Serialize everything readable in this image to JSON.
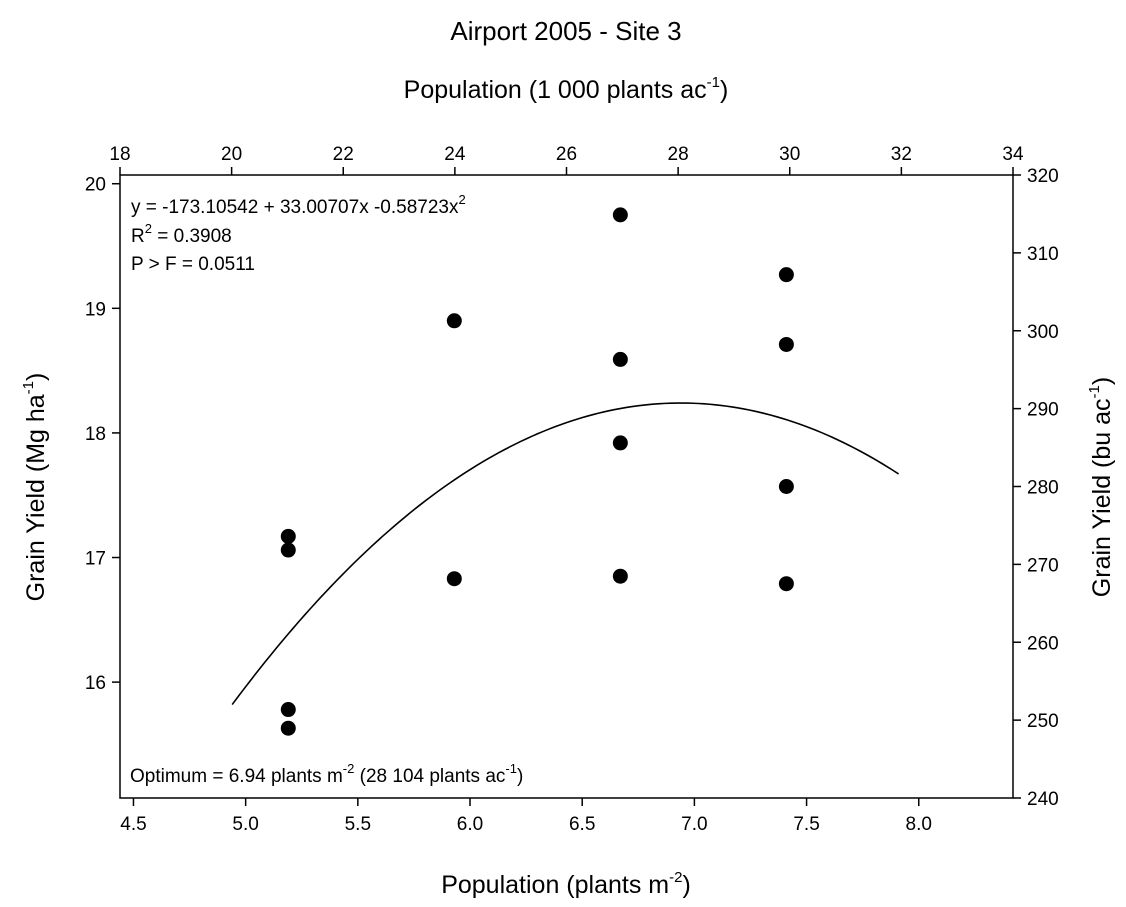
{
  "chart_data": {
    "type": "scatter",
    "title": "Airport 2005 - Site 3",
    "top_axis_label": {
      "main": "Population (1 000 plants ac",
      "sup": "-1",
      "end": ")"
    },
    "bottom_axis_label": {
      "main": "Population (plants m",
      "sup": "-2",
      "end": ")"
    },
    "left_axis_label": {
      "main": "Grain Yield (Mg ha",
      "sup": "-1",
      "end": ")"
    },
    "right_axis_label": {
      "main": "Grain Yield (bu ac",
      "sup": "-1",
      "end": ")"
    },
    "x_bottom": {
      "min": 4.44,
      "max": 8.42,
      "ticks": [
        "4.5",
        "5.0",
        "5.5",
        "6.0",
        "6.5",
        "7.0",
        "7.5",
        "8.0"
      ]
    },
    "x_top": {
      "min": 18,
      "max": 34,
      "ticks": [
        "18",
        "20",
        "22",
        "24",
        "26",
        "28",
        "30",
        "32",
        "34"
      ]
    },
    "y_left": {
      "min": 15.07,
      "max": 20.07,
      "ticks": [
        "16",
        "17",
        "18",
        "19",
        "20"
      ]
    },
    "y_right": {
      "min": 240,
      "max": 320,
      "ticks": [
        "240",
        "250",
        "260",
        "270",
        "280",
        "290",
        "300",
        "310",
        "320"
      ]
    },
    "points": [
      {
        "x": 5.19,
        "y": 17.17
      },
      {
        "x": 5.19,
        "y": 17.06
      },
      {
        "x": 5.19,
        "y": 15.78
      },
      {
        "x": 5.19,
        "y": 15.63
      },
      {
        "x": 5.93,
        "y": 18.9
      },
      {
        "x": 5.93,
        "y": 16.83
      },
      {
        "x": 6.67,
        "y": 19.75
      },
      {
        "x": 6.67,
        "y": 18.59
      },
      {
        "x": 6.67,
        "y": 17.92
      },
      {
        "x": 6.67,
        "y": 16.85
      },
      {
        "x": 7.41,
        "y": 19.27
      },
      {
        "x": 7.41,
        "y": 18.71
      },
      {
        "x": 7.41,
        "y": 17.57
      },
      {
        "x": 7.41,
        "y": 16.79
      }
    ],
    "fit": {
      "x_from": 4.94,
      "x_to": 7.91,
      "y_at_optimum": 18.24,
      "optimum_x": 6.94,
      "y_at_start": 15.82
    },
    "equation": {
      "text": "y = -173.10542 + 33.00707x -0.58723x",
      "sup": "2"
    },
    "r2": {
      "pre": "R",
      "sup": "2",
      "post": " = 0.3908"
    },
    "pvalue": "P > F = 0.0511",
    "optimum": {
      "pre": "Optimum = 6.94 plants m",
      "sup1": "-2",
      "mid": " (28 104 plants ac",
      "sup2": "-1",
      "end": ")"
    }
  }
}
